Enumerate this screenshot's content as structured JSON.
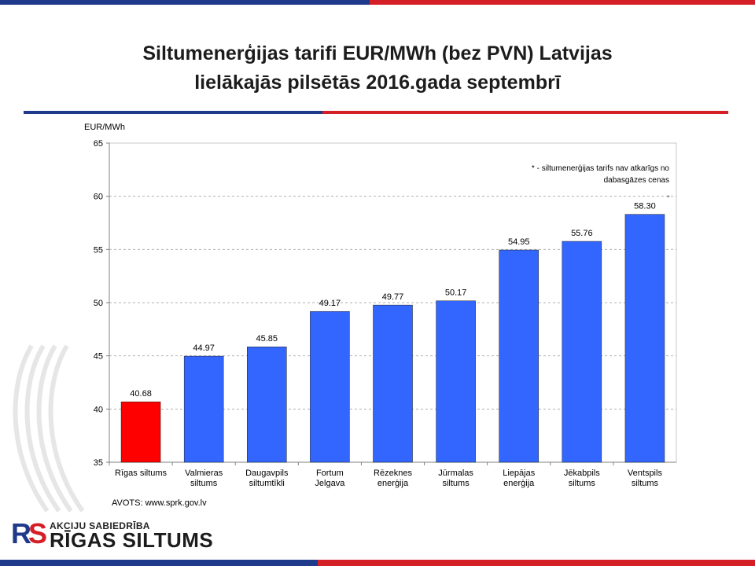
{
  "title_line1": "Siltumenerģijas tarifi EUR/MWh (bez PVN) Latvijas",
  "title_line2": "lielākajās pilsētās 2016.gada septembrī",
  "colors": {
    "blue": "#1f3a8a",
    "red": "#d41f26",
    "bar_blue": "#3366ff",
    "bar_red": "#ff0000"
  },
  "chart_data": {
    "type": "bar",
    "ylabel": "EUR/MWh",
    "ylim": [
      35,
      65
    ],
    "yticks": [
      35,
      40,
      45,
      50,
      55,
      60,
      65
    ],
    "grid": true,
    "categories": [
      [
        "Rīgas siltums"
      ],
      [
        "Valmieras",
        "siltums"
      ],
      [
        "Daugavpils",
        "siltumtīkli"
      ],
      [
        "Fortum",
        "Jelgava"
      ],
      [
        "Rēzeknes",
        "enerģija"
      ],
      [
        "Jūrmalas",
        "siltums"
      ],
      [
        "Liepājas",
        "enerģija"
      ],
      [
        "Jēkabpils",
        "siltums"
      ],
      [
        "Ventspils",
        "siltums"
      ]
    ],
    "values": [
      40.68,
      44.97,
      45.85,
      49.17,
      49.77,
      50.17,
      54.95,
      55.76,
      58.3
    ],
    "value_labels": [
      "40.68",
      "44.97",
      "45.85",
      "49.17",
      "49.77",
      "50.17",
      "54.95",
      "55.76",
      "58.30"
    ],
    "bar_colors": [
      "#ff0000",
      "#3366ff",
      "#3366ff",
      "#3366ff",
      "#3366ff",
      "#3366ff",
      "#3366ff",
      "#3366ff",
      "#3366ff"
    ],
    "asterisk_on_index": 8,
    "annotation_line1": "* - siltumenerģijas tarifs nav atkarīgs no",
    "annotation_line2": "dabasgāzes cenas",
    "source": "AVOTS: www.sprk.gov.lv"
  },
  "logo": {
    "mark": "RS",
    "subtitle": "AKCIJU SABIEDRĪBA",
    "name": "RĪGAS SILTUMS"
  }
}
